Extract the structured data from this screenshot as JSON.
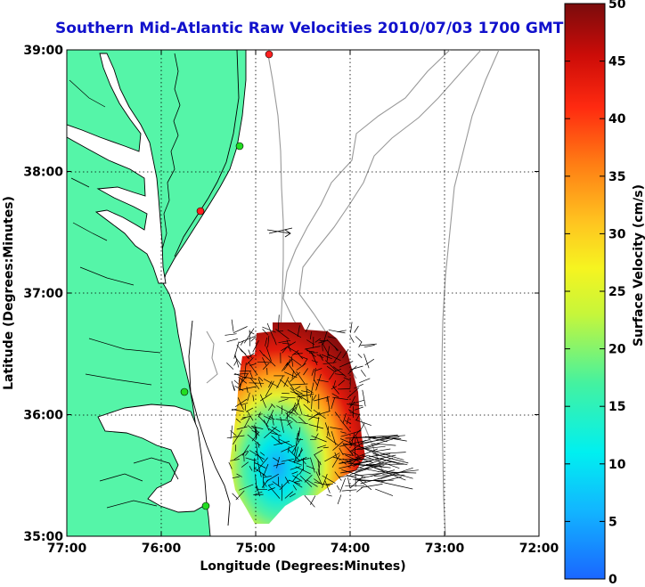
{
  "title": "Southern Mid-Atlantic Raw Velocities 2010/07/03 1700 GMT",
  "x_axis": {
    "label": "Longitude (Degrees:Minutes)",
    "ticks": [
      "77:00",
      "76:00",
      "75:00",
      "74:00",
      "73:00",
      "72:00"
    ]
  },
  "y_axis": {
    "label": "Latitude (Degrees:Minutes)",
    "ticks": [
      "39:00",
      "38:00",
      "37:00",
      "36:00",
      "35:00"
    ]
  },
  "colorbar": {
    "label": "Surface Velocity (cm/s)",
    "ticks": [
      "0",
      "5",
      "10",
      "15",
      "20",
      "25",
      "30",
      "35",
      "40",
      "45",
      "50"
    ],
    "min": 0,
    "max": 50
  },
  "map_style": {
    "land_color": "#55f5a8",
    "coast_color": "#000000",
    "bathymetry_color": "#999999",
    "grid": "dotted"
  },
  "stations": [
    {
      "color": "#ff2020"
    },
    {
      "color": "#22dd22"
    },
    {
      "color": "#ff2020"
    },
    {
      "color": "#22dd22"
    },
    {
      "color": "#22dd22"
    }
  ]
}
